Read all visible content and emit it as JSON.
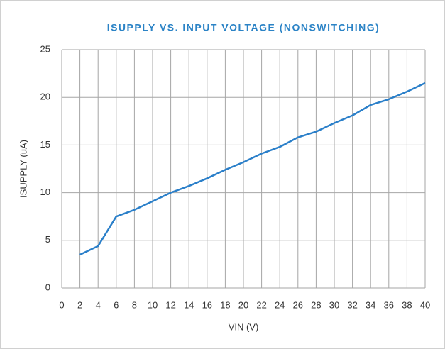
{
  "chart_data": {
    "type": "line",
    "title": "ISUPPLY VS. INPUT VOLTAGE (NONSWITCHING)",
    "x_label": "VIN (V)",
    "y_label": "ISUPPLY (uA)",
    "x": [
      2,
      4,
      6,
      8,
      10,
      12,
      14,
      16,
      18,
      20,
      22,
      24,
      26,
      28,
      30,
      32,
      34,
      36,
      38,
      40
    ],
    "series": [
      {
        "name": "ISUPPLY",
        "color": "#2a7fc9",
        "values": [
          3.5,
          4.4,
          7.5,
          8.2,
          9.1,
          10.0,
          10.7,
          11.5,
          12.4,
          13.2,
          14.1,
          14.8,
          15.8,
          16.4,
          17.3,
          18.1,
          19.2,
          19.8,
          20.6,
          21.5
        ]
      }
    ],
    "xlim": [
      0,
      40
    ],
    "xticks": [
      0,
      2,
      4,
      6,
      8,
      10,
      12,
      14,
      16,
      18,
      20,
      22,
      24,
      26,
      28,
      30,
      32,
      34,
      36,
      38,
      40
    ],
    "ylim": [
      0,
      25
    ],
    "yticks": [
      0,
      5,
      10,
      15,
      20,
      25
    ],
    "grid": true,
    "title_color": "#2b83c6"
  }
}
